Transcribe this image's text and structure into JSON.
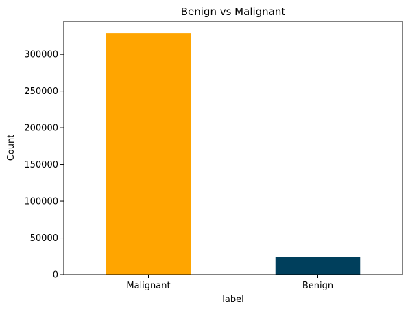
{
  "chart_data": {
    "type": "bar",
    "title": "Benign vs Malignant",
    "xlabel": "label",
    "ylabel": "Count",
    "categories": [
      "Malignant",
      "Benign"
    ],
    "values": [
      329000,
      24000
    ],
    "bar_colors": [
      "#FFA500",
      "#003F5C"
    ],
    "ylim": [
      0,
      345000
    ],
    "yticks": [
      0,
      50000,
      100000,
      150000,
      200000,
      250000,
      300000
    ],
    "ytick_labels": [
      "0",
      "50000",
      "100000",
      "150000",
      "200000",
      "250000",
      "300000"
    ],
    "grid": false,
    "legend": "none"
  }
}
